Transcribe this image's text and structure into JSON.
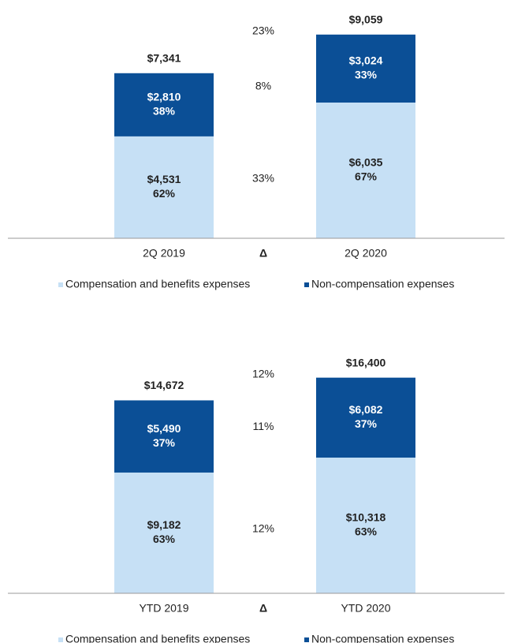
{
  "chart_data": [
    {
      "type": "bar",
      "stacked": true,
      "categories": [
        "2Q 2019",
        "2Q 2020"
      ],
      "delta_header": "Δ",
      "ylim": [
        0,
        10000
      ],
      "series": [
        {
          "name": "Compensation and benefits expenses",
          "color": "#c6e0f5",
          "text_color": "#222222",
          "values": [
            4531,
            6035
          ],
          "value_labels": [
            "$4,531",
            "$6,035"
          ],
          "shares": [
            62,
            67
          ],
          "share_labels": [
            "62%",
            "67%"
          ],
          "delta": "33%"
        },
        {
          "name": "Non-compensation expenses",
          "color": "#0b4f96",
          "text_color": "#ffffff",
          "values": [
            2810,
            3024
          ],
          "value_labels": [
            "$2,810",
            "$3,024"
          ],
          "shares": [
            38,
            33
          ],
          "share_labels": [
            "38%",
            "33%"
          ],
          "delta": "8%"
        }
      ],
      "totals": [
        7341,
        9059
      ],
      "total_labels": [
        "$7,341",
        "$9,059"
      ],
      "total_delta": "23%"
    },
    {
      "type": "bar",
      "stacked": true,
      "categories": [
        "YTD 2019",
        "YTD 2020"
      ],
      "delta_header": "Δ",
      "ylim": [
        0,
        18000
      ],
      "series": [
        {
          "name": "Compensation and benefits expenses",
          "color": "#c6e0f5",
          "text_color": "#222222",
          "values": [
            9182,
            10318
          ],
          "value_labels": [
            "$9,182",
            "$10,318"
          ],
          "shares": [
            63,
            63
          ],
          "share_labels": [
            "63%",
            "63%"
          ],
          "delta": "12%"
        },
        {
          "name": "Non-compensation expenses",
          "color": "#0b4f96",
          "text_color": "#ffffff",
          "values": [
            5490,
            6082
          ],
          "value_labels": [
            "$5,490",
            "$6,082"
          ],
          "shares": [
            37,
            37
          ],
          "share_labels": [
            "37%",
            "37%"
          ],
          "delta": "11%"
        }
      ],
      "totals": [
        14672,
        16400
      ],
      "total_labels": [
        "$14,672",
        "$16,400"
      ],
      "total_delta": "12%"
    }
  ]
}
